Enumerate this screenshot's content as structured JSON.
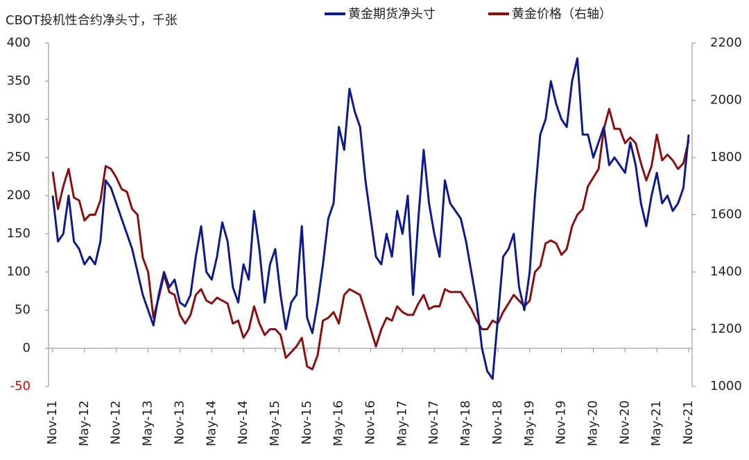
{
  "chart_data": {
    "type": "line",
    "title": "CBOT投机性合约净头寸，千张",
    "categories": [
      "Nov-11",
      null,
      null,
      null,
      null,
      null,
      "May-12",
      null,
      null,
      null,
      null,
      null,
      "Nov-12",
      null,
      null,
      null,
      null,
      null,
      "May-13",
      null,
      null,
      null,
      null,
      null,
      "Nov-13",
      null,
      null,
      null,
      null,
      null,
      "May-14",
      null,
      null,
      null,
      null,
      null,
      "Nov-14",
      null,
      null,
      null,
      null,
      null,
      "May-15",
      null,
      null,
      null,
      null,
      null,
      "Nov-15",
      null,
      null,
      null,
      null,
      null,
      "May-16",
      null,
      null,
      null,
      null,
      null,
      "Nov-16",
      null,
      null,
      null,
      null,
      null,
      "May-17",
      null,
      null,
      null,
      null,
      null,
      "Nov-17",
      null,
      null,
      null,
      null,
      null,
      "May-18",
      null,
      null,
      null,
      null,
      null,
      "Nov-18",
      null,
      null,
      null,
      null,
      null,
      "May-19",
      null,
      null,
      null,
      null,
      null,
      "Nov-19",
      null,
      null,
      null,
      null,
      null,
      "May-20",
      null,
      null,
      null,
      null,
      null,
      "Nov-20",
      null,
      null,
      null,
      null,
      null,
      "May-21",
      null,
      null,
      null,
      null,
      null,
      "Nov-21"
    ],
    "series": [
      {
        "name": "黄金期货净头寸",
        "color": "#0d1a8c",
        "axis": "y",
        "values": [
          200,
          140,
          150,
          200,
          140,
          130,
          110,
          120,
          110,
          140,
          220,
          210,
          190,
          170,
          150,
          130,
          100,
          70,
          50,
          30,
          70,
          100,
          80,
          90,
          60,
          55,
          70,
          120,
          160,
          100,
          90,
          120,
          165,
          140,
          80,
          60,
          110,
          90,
          180,
          130,
          60,
          110,
          130,
          70,
          25,
          60,
          70,
          160,
          40,
          20,
          60,
          110,
          170,
          190,
          290,
          260,
          340,
          310,
          290,
          220,
          170,
          120,
          110,
          150,
          120,
          180,
          150,
          200,
          70,
          170,
          260,
          190,
          150,
          120,
          220,
          190,
          180,
          170,
          140,
          100,
          60,
          0,
          -30,
          -40,
          40,
          120,
          130,
          150,
          80,
          50,
          100,
          200,
          280,
          300,
          350,
          320,
          300,
          290,
          350,
          380,
          280,
          280,
          250,
          270,
          290,
          240,
          250,
          240,
          230,
          270,
          240,
          190,
          160,
          200,
          230,
          190,
          200,
          180,
          190,
          210,
          280
        ]
      },
      {
        "name": "黄金价格（右轴）",
        "color": "#8b0e0e",
        "axis": "y2",
        "values": [
          1750,
          1620,
          1700,
          1760,
          1660,
          1650,
          1580,
          1600,
          1600,
          1650,
          1770,
          1760,
          1730,
          1690,
          1680,
          1620,
          1600,
          1450,
          1400,
          1240,
          1310,
          1390,
          1330,
          1320,
          1250,
          1220,
          1250,
          1320,
          1340,
          1300,
          1290,
          1310,
          1300,
          1290,
          1220,
          1230,
          1170,
          1200,
          1280,
          1220,
          1180,
          1200,
          1200,
          1180,
          1100,
          1120,
          1140,
          1170,
          1070,
          1060,
          1110,
          1230,
          1240,
          1260,
          1220,
          1320,
          1340,
          1330,
          1320,
          1260,
          1200,
          1140,
          1200,
          1240,
          1230,
          1280,
          1260,
          1250,
          1250,
          1290,
          1320,
          1270,
          1280,
          1280,
          1340,
          1330,
          1330,
          1330,
          1300,
          1270,
          1230,
          1200,
          1200,
          1230,
          1220,
          1260,
          1290,
          1320,
          1300,
          1280,
          1300,
          1400,
          1420,
          1500,
          1510,
          1500,
          1460,
          1480,
          1560,
          1600,
          1620,
          1700,
          1730,
          1760,
          1900,
          1970,
          1900,
          1900,
          1850,
          1870,
          1850,
          1780,
          1720,
          1770,
          1880,
          1790,
          1810,
          1790,
          1760,
          1780,
          1860
        ]
      }
    ],
    "ylim": [
      -50,
      400
    ],
    "yticks": [
      -50,
      0,
      50,
      100,
      150,
      200,
      250,
      300,
      350,
      400
    ],
    "y2lim": [
      1000,
      2200
    ],
    "y2ticks": [
      1000,
      1200,
      1400,
      1600,
      1800,
      2000,
      2200
    ],
    "negative_tick_color": "#e00000",
    "legend": "top"
  }
}
